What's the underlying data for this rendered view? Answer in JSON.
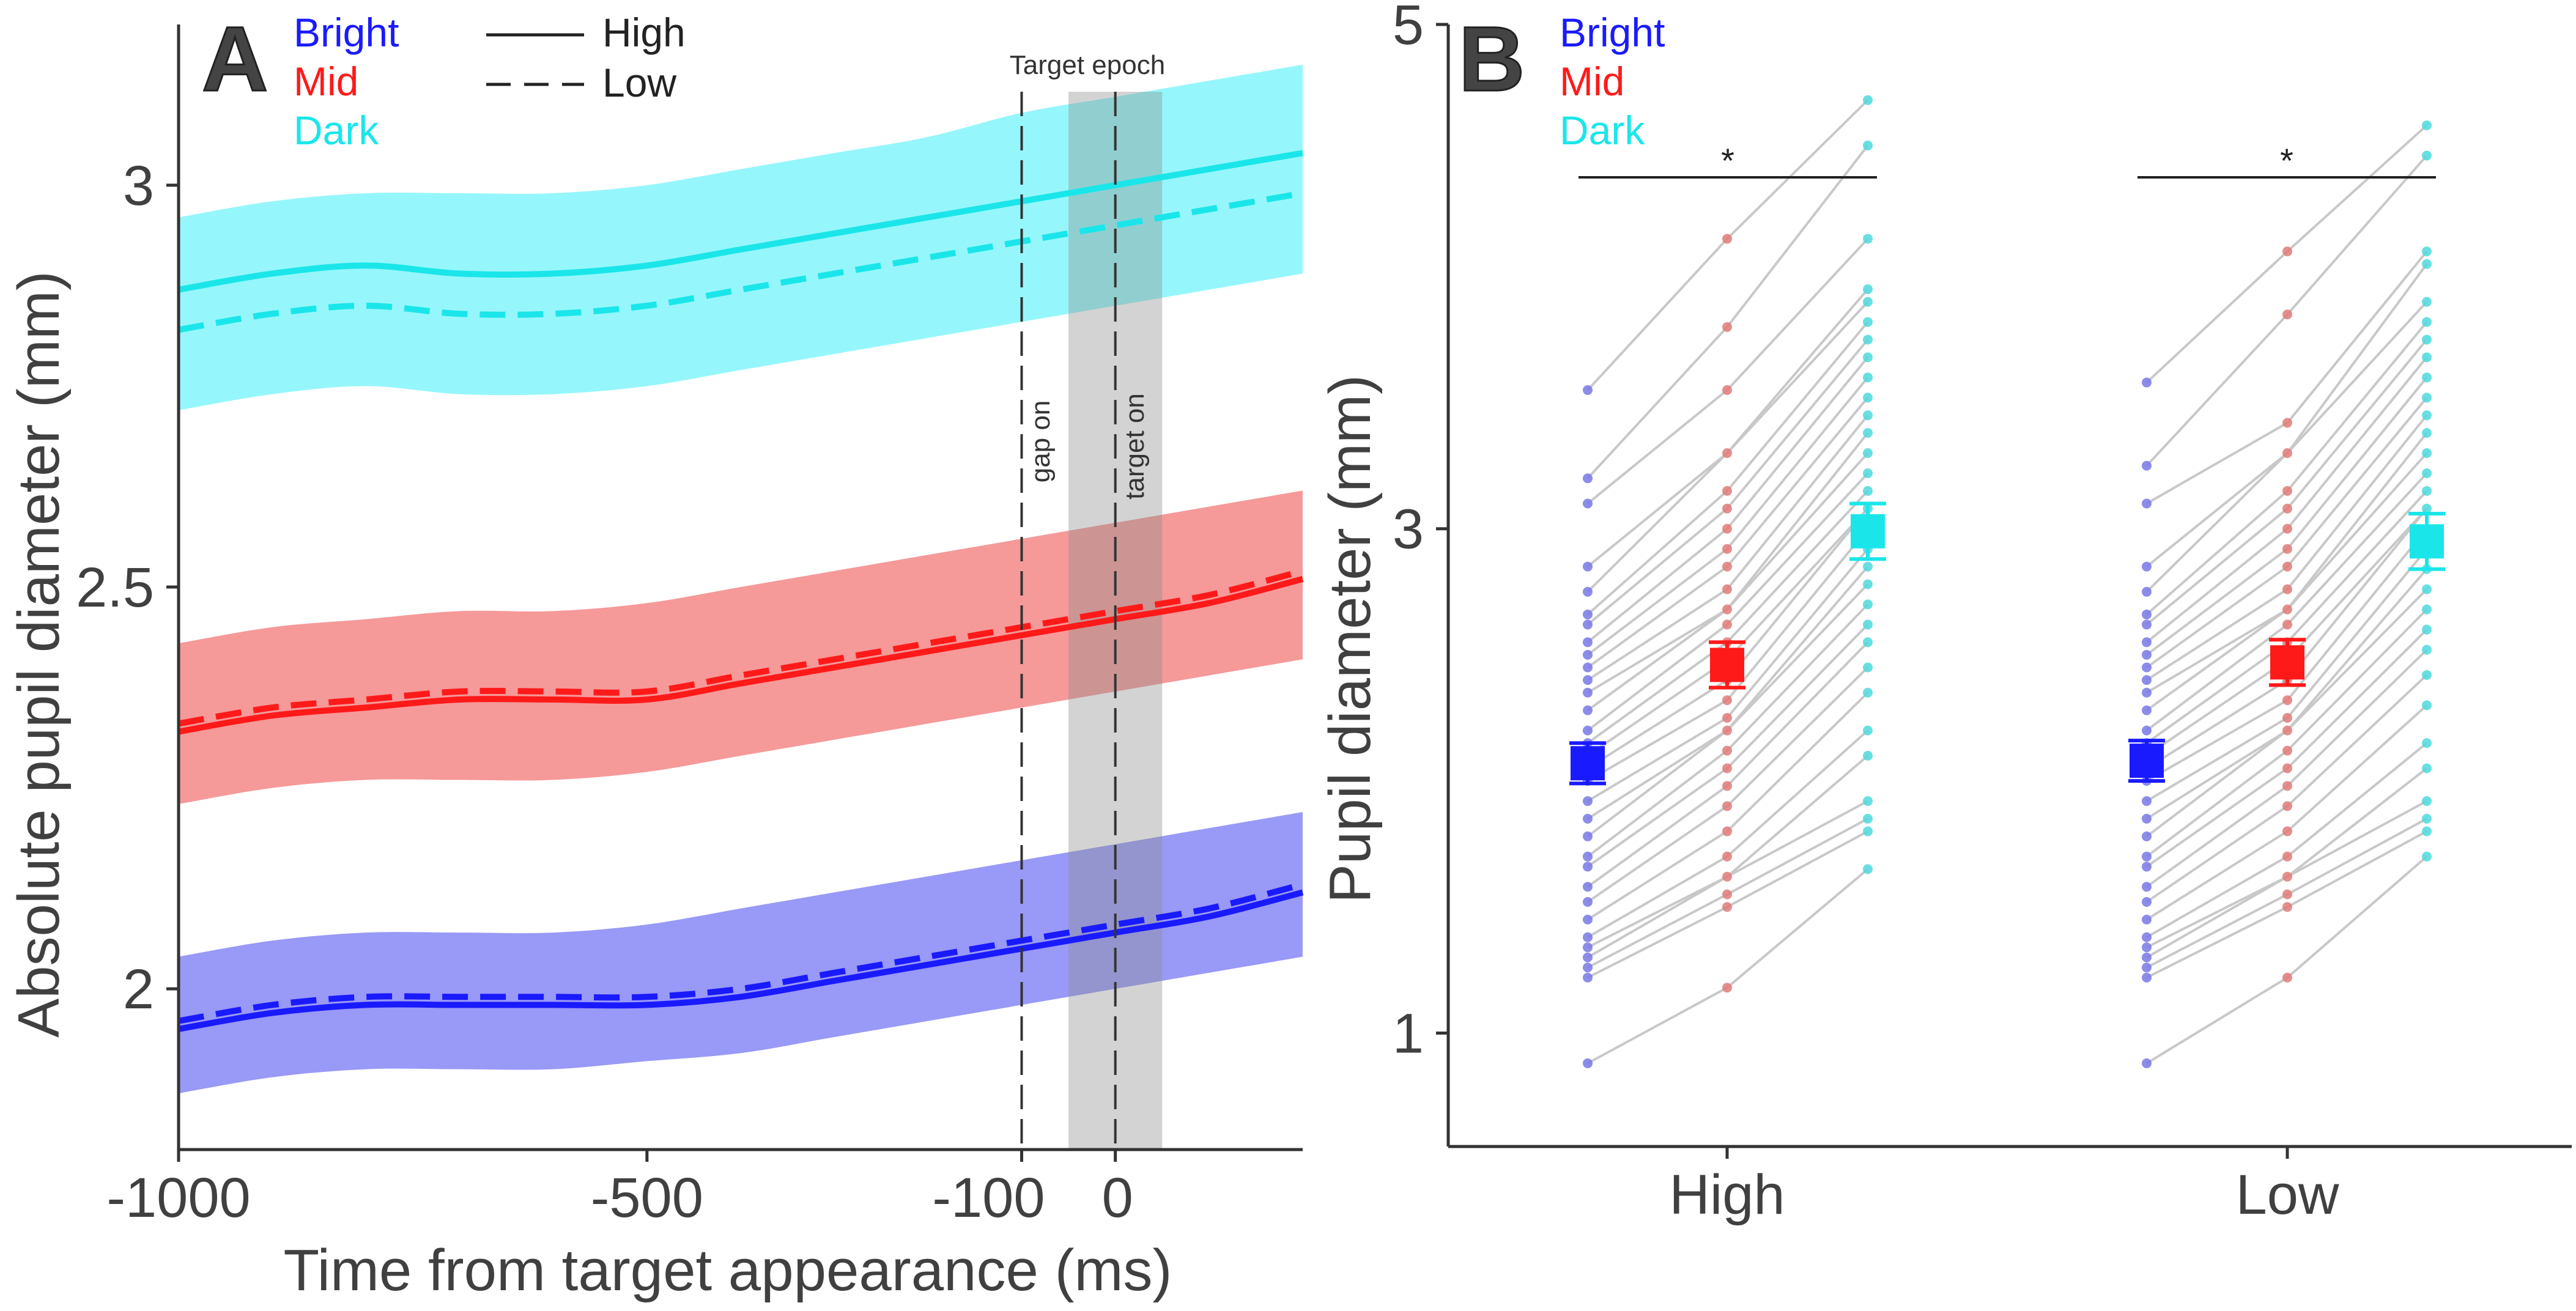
{
  "chart_data": [
    {
      "panel": "A",
      "type": "line",
      "xlabel": "Time from target appearance (ms)",
      "ylabel": "Absolute pupil diameter (mm)",
      "xlim": [
        -1000,
        200
      ],
      "ylim": [
        1.8,
        3.2
      ],
      "xticks": [
        -1000,
        -500,
        -100,
        0
      ],
      "xtick_labels": [
        "-1000",
        "-500",
        "-100",
        "0"
      ],
      "yticks": [
        2,
        2.5,
        3
      ],
      "ytick_labels": [
        "2",
        "2.5",
        "3"
      ],
      "legend_colors": [
        {
          "label": "Bright",
          "color": "#1a1aff"
        },
        {
          "label": "Mid",
          "color": "#ff1a1a"
        },
        {
          "label": "Dark",
          "color": "#1ae6ea"
        }
      ],
      "legend_styles": [
        {
          "label": "High",
          "style": "solid"
        },
        {
          "label": "Low",
          "style": "dashed"
        }
      ],
      "annotations": {
        "epoch_label": "Target epoch",
        "epoch_range": [
          -50,
          50
        ],
        "gap_on_label": "gap on",
        "gap_on_x": -100,
        "target_on_label": "target on",
        "target_on_x": 0
      },
      "x": [
        -1000,
        -900,
        -800,
        -700,
        -600,
        -500,
        -400,
        -300,
        -200,
        -100,
        0,
        100,
        200
      ],
      "series": [
        {
          "name": "Dark High",
          "condition": "Dark",
          "style": "solid",
          "color": "#1ae6ea",
          "fill": "#8ff7fb",
          "values": [
            2.87,
            2.89,
            2.9,
            2.89,
            2.89,
            2.9,
            2.92,
            2.94,
            2.96,
            2.98,
            3.0,
            3.02,
            3.04
          ],
          "lower": [
            2.72,
            2.74,
            2.75,
            2.74,
            2.74,
            2.75,
            2.77,
            2.79,
            2.81,
            2.83,
            2.85,
            2.87,
            2.89
          ],
          "upper": [
            2.96,
            2.98,
            2.99,
            2.99,
            2.99,
            3.0,
            3.02,
            3.04,
            3.06,
            3.09,
            3.11,
            3.13,
            3.15
          ]
        },
        {
          "name": "Dark Low",
          "condition": "Dark",
          "style": "dashed",
          "color": "#1ae6ea",
          "values": [
            2.82,
            2.84,
            2.85,
            2.84,
            2.84,
            2.85,
            2.87,
            2.89,
            2.91,
            2.93,
            2.95,
            2.97,
            2.99
          ]
        },
        {
          "name": "Mid High",
          "condition": "Mid",
          "style": "solid",
          "color": "#ff1a1a",
          "fill": "#f59494",
          "values": [
            2.32,
            2.34,
            2.35,
            2.36,
            2.36,
            2.36,
            2.38,
            2.4,
            2.42,
            2.44,
            2.46,
            2.48,
            2.51
          ],
          "lower": [
            2.23,
            2.25,
            2.26,
            2.26,
            2.26,
            2.27,
            2.29,
            2.31,
            2.33,
            2.35,
            2.37,
            2.39,
            2.41
          ],
          "upper": [
            2.43,
            2.45,
            2.46,
            2.47,
            2.47,
            2.48,
            2.5,
            2.52,
            2.54,
            2.56,
            2.58,
            2.6,
            2.62
          ]
        },
        {
          "name": "Mid Low",
          "condition": "Mid",
          "style": "dashed",
          "color": "#ff1a1a",
          "values": [
            2.33,
            2.35,
            2.36,
            2.37,
            2.37,
            2.37,
            2.39,
            2.41,
            2.43,
            2.45,
            2.47,
            2.49,
            2.52
          ]
        },
        {
          "name": "Bright High",
          "condition": "Bright",
          "style": "solid",
          "color": "#1a1aff",
          "fill": "#9494f7",
          "values": [
            1.95,
            1.97,
            1.98,
            1.98,
            1.98,
            1.98,
            1.99,
            2.01,
            2.03,
            2.05,
            2.07,
            2.09,
            2.12
          ],
          "lower": [
            1.87,
            1.89,
            1.9,
            1.9,
            1.9,
            1.91,
            1.92,
            1.94,
            1.96,
            1.98,
            2.0,
            2.02,
            2.04
          ],
          "upper": [
            2.04,
            2.06,
            2.07,
            2.07,
            2.07,
            2.08,
            2.1,
            2.12,
            2.14,
            2.16,
            2.18,
            2.2,
            2.22
          ]
        },
        {
          "name": "Bright Low",
          "condition": "Bright",
          "style": "dashed",
          "color": "#1a1aff",
          "values": [
            1.96,
            1.98,
            1.99,
            1.99,
            1.99,
            1.99,
            2.0,
            2.02,
            2.04,
            2.06,
            2.08,
            2.1,
            2.13
          ]
        }
      ]
    },
    {
      "panel": "B",
      "type": "scatter",
      "ylabel": "Pupil diameter (mm)",
      "ylim": [
        0.55,
        5
      ],
      "yticks": [
        1,
        3,
        5
      ],
      "ytick_labels": [
        "1",
        "3",
        "5"
      ],
      "categories": [
        "High",
        "Low"
      ],
      "conditions": [
        "Bright",
        "Mid",
        "Dark"
      ],
      "legend_colors": [
        {
          "label": "Bright",
          "color": "#1a1aff"
        },
        {
          "label": "Mid",
          "color": "#ff1a1a"
        },
        {
          "label": "Dark",
          "color": "#1ae6ea"
        }
      ],
      "colors": {
        "Bright": "#1a1aff",
        "Mid": "#ff1a1a",
        "Dark": "#1ae6ea"
      },
      "dot_colors": {
        "Bright": "#7878e6",
        "Mid": "#e07a7a",
        "Dark": "#4fd9dd"
      },
      "significance": [
        {
          "group": "High",
          "label": "*"
        },
        {
          "group": "Low",
          "label": "*"
        }
      ],
      "means": {
        "High": {
          "Bright": 2.07,
          "Mid": 2.46,
          "Dark": 2.99
        },
        "Low": {
          "Bright": 2.08,
          "Mid": 2.47,
          "Dark": 2.95
        }
      },
      "errors": {
        "High": {
          "Bright": 0.08,
          "Mid": 0.09,
          "Dark": 0.11
        },
        "Low": {
          "Bright": 0.08,
          "Mid": 0.09,
          "Dark": 0.11
        }
      },
      "subjects": {
        "High": {
          "Bright": [
            0.88,
            1.22,
            1.26,
            1.3,
            1.34,
            1.38,
            1.45,
            1.52,
            1.58,
            1.66,
            1.7,
            1.78,
            1.85,
            1.92,
            2.0,
            2.05,
            2.1,
            2.15,
            2.2,
            2.28,
            2.35,
            2.4,
            2.45,
            2.5,
            2.55,
            2.62,
            2.66,
            2.75,
            2.85,
            3.1,
            3.2,
            3.55
          ],
          "Mid": [
            1.18,
            1.5,
            1.55,
            1.62,
            1.7,
            1.8,
            1.9,
            1.98,
            2.05,
            2.12,
            2.2,
            2.25,
            2.32,
            2.4,
            2.48,
            2.55,
            2.62,
            2.68,
            2.76,
            2.85,
            2.92,
            3.0,
            3.08,
            3.15,
            3.3,
            3.55,
            3.8,
            4.15
          ],
          "Dark": [
            1.65,
            1.8,
            1.85,
            1.92,
            2.1,
            2.2,
            2.35,
            2.45,
            2.55,
            2.62,
            2.7,
            2.78,
            2.85,
            2.92,
            3.0,
            3.08,
            3.15,
            3.22,
            3.3,
            3.38,
            3.45,
            3.52,
            3.6,
            3.68,
            3.75,
            3.82,
            3.9,
            3.95,
            4.15,
            4.52,
            4.7
          ]
        },
        "Low": {
          "Bright": [
            0.88,
            1.22,
            1.26,
            1.3,
            1.34,
            1.38,
            1.45,
            1.52,
            1.58,
            1.66,
            1.7,
            1.78,
            1.85,
            1.92,
            2.0,
            2.05,
            2.1,
            2.15,
            2.2,
            2.28,
            2.35,
            2.4,
            2.45,
            2.5,
            2.55,
            2.62,
            2.66,
            2.75,
            2.85,
            3.1,
            3.25,
            3.58
          ],
          "Mid": [
            1.22,
            1.5,
            1.55,
            1.62,
            1.7,
            1.8,
            1.9,
            1.98,
            2.05,
            2.12,
            2.2,
            2.25,
            2.32,
            2.4,
            2.48,
            2.55,
            2.62,
            2.68,
            2.76,
            2.85,
            2.92,
            3.0,
            3.08,
            3.15,
            3.3,
            3.42,
            3.85,
            4.1
          ],
          "Dark": [
            1.7,
            1.8,
            1.85,
            1.92,
            2.05,
            2.15,
            2.3,
            2.42,
            2.52,
            2.6,
            2.68,
            2.76,
            2.84,
            2.92,
            3.0,
            3.08,
            3.15,
            3.22,
            3.3,
            3.38,
            3.45,
            3.52,
            3.6,
            3.68,
            3.75,
            3.82,
            3.9,
            4.05,
            4.1,
            4.48,
            4.6
          ]
        }
      }
    }
  ],
  "panel_labels": {
    "a": "A",
    "b": "B"
  }
}
